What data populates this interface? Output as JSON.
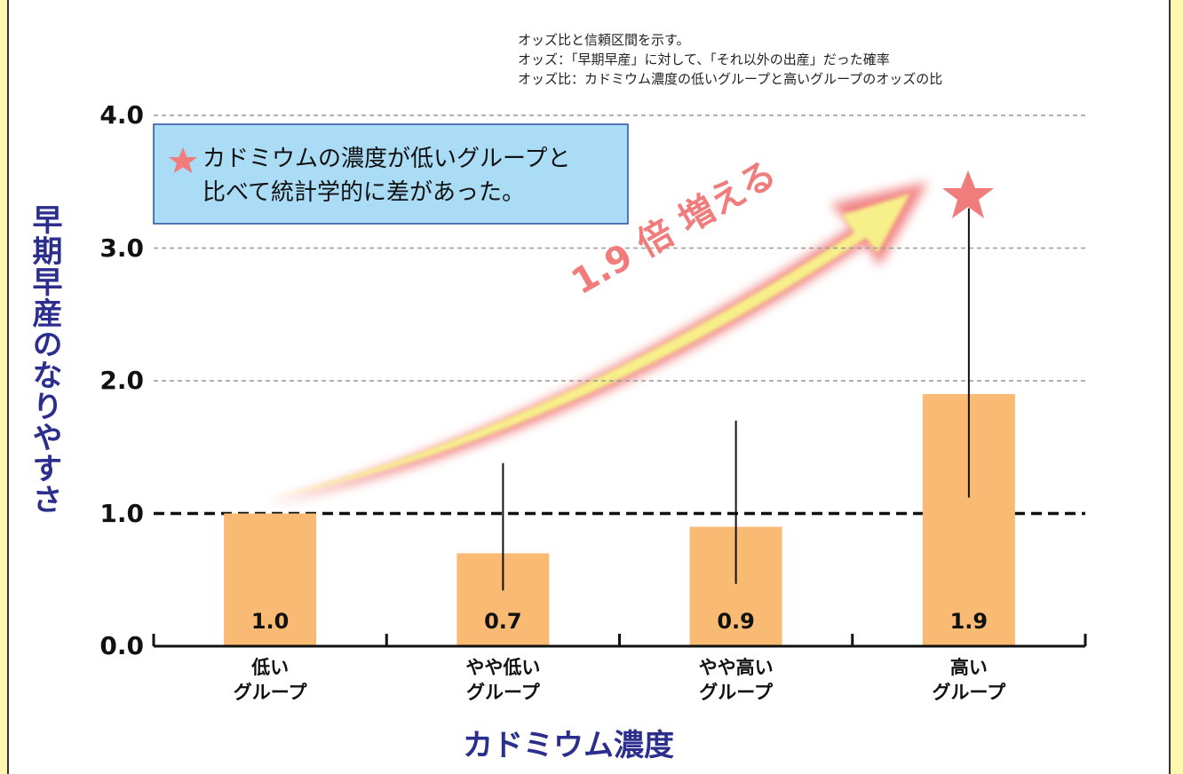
{
  "chart_data": {
    "type": "bar",
    "notes": [
      "オッズ比と信頼区間を示す。",
      "オッズ：「早期早産」に対して、「それ以外の出産」だった確率",
      "オッズ比：カドミウム濃度の低いグループと高いグループのオッズの比"
    ],
    "legend_note": "カドミウムの濃度が低いグループと\n比べて統計学的に差があった。",
    "annotation": "1.9 倍 増える",
    "y_label": "早期早産のなりやすさ",
    "x_label": "カドミウム濃度",
    "categories": [
      "低い\nグループ",
      "やや低い\nグループ",
      "やや高い\nグループ",
      "高い\nグループ"
    ],
    "values": [
      1.0,
      0.7,
      0.9,
      1.9
    ],
    "value_labels": [
      "1.0",
      "0.7",
      "0.9",
      "1.9"
    ],
    "ci_lower": [
      null,
      0.42,
      0.47,
      1.12
    ],
    "ci_upper": [
      null,
      1.38,
      1.7,
      3.3
    ],
    "color": "#f9bb74",
    "reference_line": 1,
    "ylim": [
      0,
      4
    ],
    "yticks": [
      {
        "value": 0,
        "label": "0.0"
      },
      {
        "value": 1,
        "label": "1.0"
      },
      {
        "value": 2,
        "label": "2.0"
      },
      {
        "value": 3,
        "label": "3.0"
      },
      {
        "value": 4,
        "label": "4.0"
      }
    ],
    "grid": true
  }
}
